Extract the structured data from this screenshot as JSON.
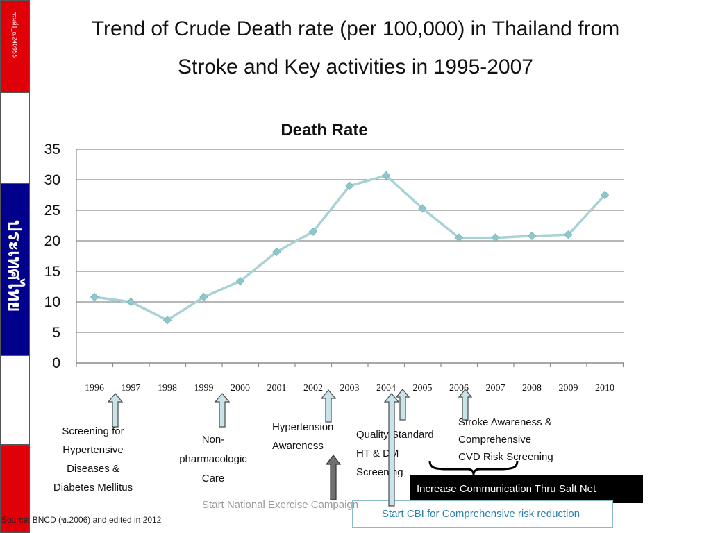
{
  "flag": {
    "code": "กรมที่1_อ.240955",
    "country": "ประเทศไทย"
  },
  "slide": {
    "title_line1": "Trend of Crude Death rate (per 100,000) in Thailand from",
    "title_line2": "Stroke and Key activities in 1995-2007"
  },
  "chart_data": {
    "type": "line",
    "title": "Death Rate",
    "x": [
      "1996",
      "1997",
      "1998",
      "1999",
      "2000",
      "2001",
      "2002",
      "2003",
      "2004",
      "2005",
      "2006",
      "2007",
      "2008",
      "2009",
      "2010"
    ],
    "series": [
      {
        "values": [
          10.8,
          10.0,
          7.0,
          10.8,
          13.4,
          18.2,
          21.5,
          29.0,
          30.7,
          25.3,
          20.5,
          20.5,
          20.8,
          21.0,
          27.5
        ]
      }
    ],
    "ylim": [
      0,
      35
    ],
    "yticks": [
      0,
      5,
      10,
      15,
      20,
      25,
      30,
      35
    ],
    "grid": true,
    "line_color": "#a8d2d6",
    "marker_color": "#8ec7cc"
  },
  "annotations": {
    "screening": [
      "Screening for",
      "Hypertensive",
      "Diseases &",
      "Diabetes Mellitus"
    ],
    "nonpharm": [
      "Non-",
      "pharmacologic",
      "Care"
    ],
    "htn": [
      "Hypertension",
      "Awareness"
    ],
    "quality": [
      "Quality Standard",
      "HT & DM",
      "Screening"
    ],
    "stroke": [
      "Stroke Awareness &",
      "Comprehensive",
      "CVD Risk Screening"
    ],
    "salt": "Increase Communication Thru Salt Net",
    "exercise": "Start National Exercise Campaign",
    "cbi": "Start CBI for Comprehensive risk reduction",
    "source": "Source: BNCD (ข.2006) and edited in 2012"
  },
  "colors": {
    "arrow_fill": "#c9e4e8",
    "arrow_stroke": "#4a4a4a",
    "dark_arrow": "#707070"
  }
}
